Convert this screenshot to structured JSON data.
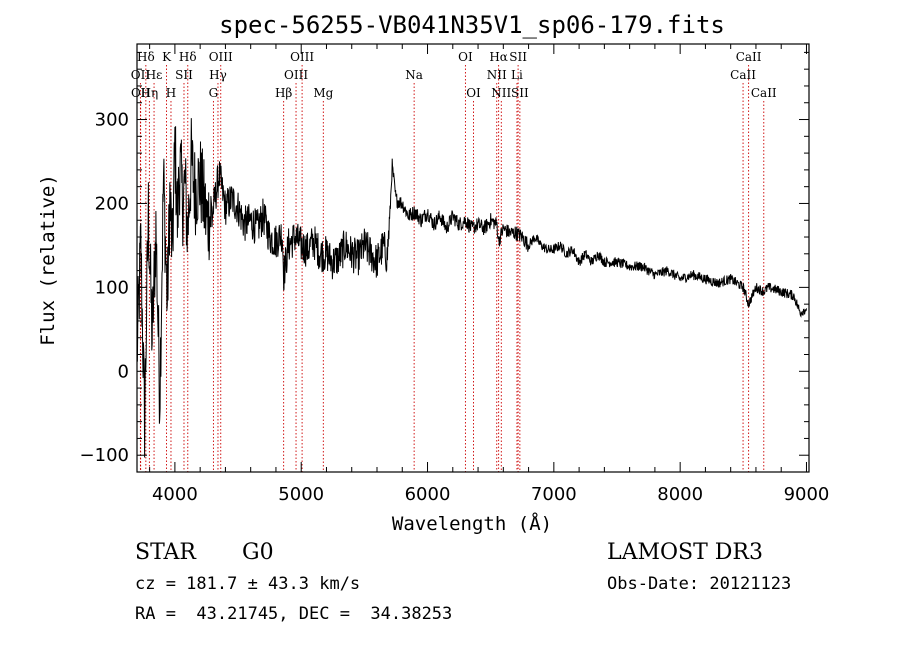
{
  "chart_data": {
    "type": "line",
    "title": "spec-56255-VB041N35V1_sp06-179.fits",
    "xlabel": "Wavelength (Å)",
    "ylabel": "Flux (relative)",
    "xlim": [
      3700,
      9020
    ],
    "ylim": [
      -120,
      390
    ],
    "xticks": [
      4000,
      5000,
      6000,
      7000,
      8000,
      9000
    ],
    "yticks": [
      -100,
      0,
      100,
      200,
      300
    ],
    "line_color": "#000000",
    "marker_color": "#cc0000",
    "spectral_lines": [
      {
        "label": "Hδ",
        "wavelength": 3770,
        "row": 0
      },
      {
        "label": "OII",
        "wavelength": 3727,
        "row": 1
      },
      {
        "label": "OII",
        "wavelength": 3729,
        "row": 2
      },
      {
        "label": "Hε",
        "wavelength": 3835,
        "row": 1
      },
      {
        "label": "Hη",
        "wavelength": 3798,
        "row": 2
      },
      {
        "label": "K",
        "wavelength": 3934,
        "row": 0
      },
      {
        "label": "H",
        "wavelength": 3969,
        "row": 2
      },
      {
        "label": "SII",
        "wavelength": 4072,
        "row": 1
      },
      {
        "label": "Hδ",
        "wavelength": 4102,
        "row": 0
      },
      {
        "label": "OIII",
        "wavelength": 4363,
        "row": 0
      },
      {
        "label": "Hγ",
        "wavelength": 4341,
        "row": 1
      },
      {
        "label": "G",
        "wavelength": 4305,
        "row": 2
      },
      {
        "label": "Hβ",
        "wavelength": 4861,
        "row": 2
      },
      {
        "label": "OIII",
        "wavelength": 5007,
        "row": 0
      },
      {
        "label": "OIII",
        "wavelength": 4959,
        "row": 1
      },
      {
        "label": "Mg",
        "wavelength": 5175,
        "row": 2
      },
      {
        "label": "Na",
        "wavelength": 5894,
        "row": 1
      },
      {
        "label": "OI",
        "wavelength": 6300,
        "row": 0
      },
      {
        "label": "OI",
        "wavelength": 6364,
        "row": 2
      },
      {
        "label": "Hα",
        "wavelength": 6563,
        "row": 0
      },
      {
        "label": "NII",
        "wavelength": 6548,
        "row": 1
      },
      {
        "label": "NII",
        "wavelength": 6584,
        "row": 2
      },
      {
        "label": "SII",
        "wavelength": 6717,
        "row": 0
      },
      {
        "label": "Li",
        "wavelength": 6708,
        "row": 1
      },
      {
        "label": "SII",
        "wavelength": 6731,
        "row": 2
      },
      {
        "label": "CaII",
        "wavelength": 8542,
        "row": 0
      },
      {
        "label": "CaII",
        "wavelength": 8498,
        "row": 1
      },
      {
        "label": "CaII",
        "wavelength": 8662,
        "row": 2
      }
    ],
    "spectrum": {
      "x": [
        3700,
        3730,
        3760,
        3790,
        3820,
        3850,
        3880,
        3910,
        3940,
        3960,
        3980,
        4000,
        4020,
        4040,
        4060,
        4080,
        4100,
        4130,
        4160,
        4200,
        4250,
        4300,
        4350,
        4400,
        4450,
        4500,
        4550,
        4600,
        4650,
        4700,
        4750,
        4800,
        4850,
        4861,
        4900,
        4950,
        5000,
        5050,
        5100,
        5150,
        5200,
        5250,
        5300,
        5350,
        5400,
        5450,
        5500,
        5550,
        5600,
        5650,
        5680,
        5700,
        5720,
        5750,
        5800,
        5850,
        5900,
        5950,
        6000,
        6050,
        6100,
        6150,
        6200,
        6250,
        6300,
        6350,
        6400,
        6450,
        6500,
        6550,
        6563,
        6600,
        6650,
        6700,
        6750,
        6800,
        6850,
        6900,
        6950,
        7000,
        7050,
        7100,
        7150,
        7200,
        7250,
        7300,
        7350,
        7400,
        7450,
        7500,
        7600,
        7700,
        7800,
        7900,
        8000,
        8100,
        8200,
        8300,
        8400,
        8500,
        8542,
        8600,
        8662,
        8700,
        8800,
        8900,
        8950,
        9000
      ],
      "y": [
        20,
        150,
        -60,
        190,
        40,
        170,
        -30,
        230,
        80,
        210,
        140,
        270,
        180,
        250,
        200,
        225,
        165,
        250,
        215,
        230,
        180,
        190,
        235,
        195,
        205,
        195,
        175,
        180,
        170,
        185,
        160,
        155,
        165,
        115,
        150,
        160,
        150,
        145,
        155,
        140,
        140,
        130,
        135,
        150,
        140,
        135,
        150,
        140,
        130,
        150,
        135,
        180,
        245,
        205,
        200,
        185,
        190,
        180,
        190,
        175,
        185,
        170,
        185,
        175,
        180,
        170,
        175,
        170,
        180,
        175,
        155,
        170,
        165,
        165,
        160,
        150,
        160,
        150,
        145,
        145,
        150,
        140,
        145,
        130,
        140,
        130,
        140,
        130,
        130,
        130,
        125,
        125,
        115,
        120,
        110,
        115,
        110,
        105,
        110,
        100,
        80,
        100,
        95,
        100,
        95,
        90,
        70,
        75
      ]
    }
  },
  "info": {
    "class": "STAR",
    "subclass": "G0",
    "survey": "LAMOST DR3",
    "cz": "cz = 181.7 ± 43.3 km/s",
    "obs_date": "Obs-Date: 20121123",
    "coords": "RA =  43.21745, DEC =  34.38253"
  }
}
